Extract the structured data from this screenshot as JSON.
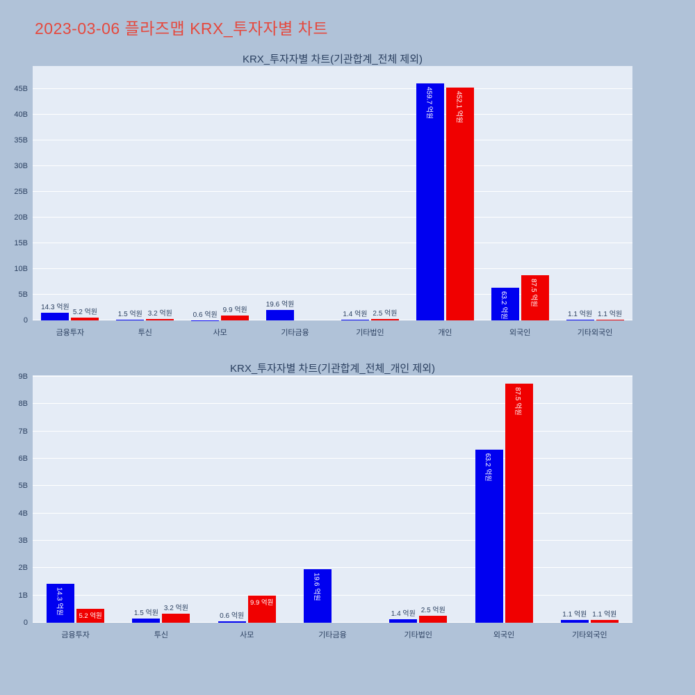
{
  "page": {
    "title": "2023-03-06 플라즈맵 KRX_투자자별 차트",
    "title_color": "#e5483d",
    "background_color": "#b0c2d8"
  },
  "colors": {
    "bar_blue": "#0000f0",
    "bar_red": "#f00000",
    "plot_background": "#e5ecf6",
    "grid": "#ffffff",
    "axis_text": "#2a3f5f",
    "label_inside": "#ffffff"
  },
  "chart_data": [
    {
      "type": "bar",
      "title": "KRX_투자자별 차트(기관합계_전체 제외)",
      "plot_bg": "#e5ecf6",
      "grid": true,
      "legend": "none",
      "value_unit": "억원",
      "value_scale_to_b": 0.1,
      "categories": [
        "금융투자",
        "투신",
        "사모",
        "기타금융",
        "기타법인",
        "개인",
        "외국인",
        "기타외국인"
      ],
      "series": [
        {
          "name": "blue",
          "color": "#0000f0",
          "values": [
            14.3,
            1.5,
            0.6,
            19.6,
            1.4,
            459.7,
            63.2,
            1.1
          ]
        },
        {
          "name": "red",
          "color": "#f00000",
          "values": [
            5.2,
            3.2,
            9.9,
            null,
            2.5,
            452.1,
            87.5,
            1.1
          ]
        }
      ],
      "y_axis": {
        "tick_values_b": [
          0,
          5,
          10,
          15,
          20,
          25,
          30,
          35,
          40,
          45
        ],
        "tick_labels": [
          "0",
          "5B",
          "10B",
          "15B",
          "20B",
          "25B",
          "30B",
          "35B",
          "40B",
          "45B"
        ],
        "ylim_b": [
          0,
          49.4
        ]
      }
    },
    {
      "type": "bar",
      "title": "KRX_투자자별 차트(기관합계_전체_개인 제외)",
      "plot_bg": "#e5ecf6",
      "grid": true,
      "legend": "none",
      "value_unit": "억원",
      "value_scale_to_b": 0.1,
      "categories": [
        "금융투자",
        "투신",
        "사모",
        "기타금융",
        "기타법인",
        "외국인",
        "기타외국인"
      ],
      "series": [
        {
          "name": "blue",
          "color": "#0000f0",
          "values": [
            14.3,
            1.5,
            0.6,
            19.6,
            1.4,
            63.2,
            1.1
          ]
        },
        {
          "name": "red",
          "color": "#f00000",
          "values": [
            5.2,
            3.2,
            9.9,
            null,
            2.5,
            87.5,
            1.1
          ]
        }
      ],
      "y_axis": {
        "tick_values_b": [
          0,
          1,
          2,
          3,
          4,
          5,
          6,
          7,
          8,
          9
        ],
        "tick_labels": [
          "0",
          "1B",
          "2B",
          "3B",
          "4B",
          "5B",
          "6B",
          "7B",
          "8B",
          "9B"
        ],
        "ylim_b": [
          0,
          9.05
        ]
      }
    }
  ]
}
